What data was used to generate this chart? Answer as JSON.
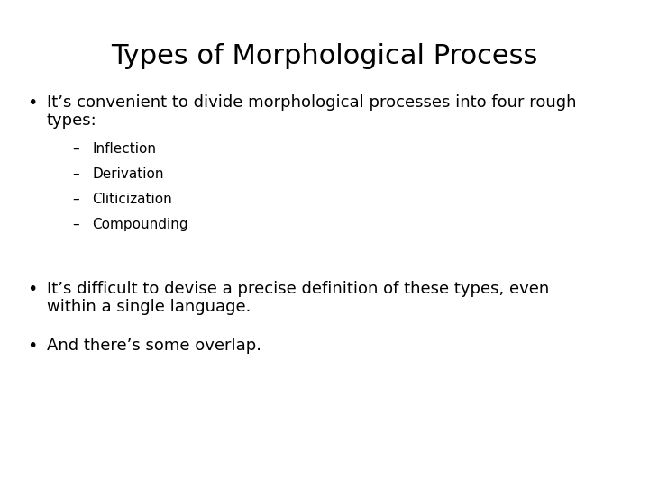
{
  "title": "Types of Morphological Process",
  "background_color": "#ffffff",
  "text_color": "#000000",
  "title_fontsize": 22,
  "body_fontsize": 13,
  "sub_fontsize": 11,
  "bullet1_line1": "It’s convenient to divide morphological processes into four rough",
  "bullet1_line2": "types:",
  "sub_items": [
    "Inflection",
    "Derivation",
    "Cliticization",
    "Compounding"
  ],
  "bullet2_line1": "It’s difficult to devise a precise definition of these types, even",
  "bullet2_line2": "within a single language.",
  "bullet3": "And there’s some overlap."
}
